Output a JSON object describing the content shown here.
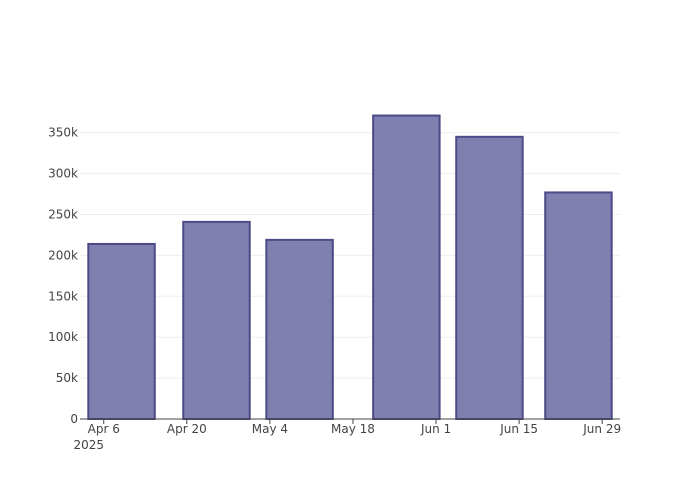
{
  "chart_data": {
    "type": "bar",
    "x": [
      "2025-04-09",
      "2025-04-25",
      "2025-05-09",
      "2025-05-27",
      "2025-06-10",
      "2025-06-25"
    ],
    "values": [
      214000,
      241000,
      219000,
      371000,
      345000,
      277000
    ],
    "color": "#7f7fb0",
    "edge_color": "#4b4b88",
    "xlim": [
      "2025-04-02",
      "2025-07-02"
    ],
    "xticks": [
      {
        "value": "2025-04-06",
        "label": "Apr 6\n2025"
      },
      {
        "value": "2025-04-20",
        "label": "Apr 20"
      },
      {
        "value": "2025-05-04",
        "label": "May 4"
      },
      {
        "value": "2025-05-18",
        "label": "May 18"
      },
      {
        "value": "2025-06-01",
        "label": "Jun 1"
      },
      {
        "value": "2025-06-15",
        "label": "Jun 15"
      },
      {
        "value": "2025-06-29",
        "label": "Jun 29"
      }
    ],
    "ylim": [
      0,
      390000
    ],
    "yticks": [
      0,
      {
        "value": 50000,
        "label": "50k"
      },
      {
        "value": 100000,
        "label": "100k"
      },
      {
        "value": 150000,
        "label": "150k"
      },
      {
        "value": 200000,
        "label": "200k"
      },
      {
        "value": 250000,
        "label": "250k"
      },
      {
        "value": 300000,
        "label": "300k"
      },
      {
        "value": 350000,
        "label": "350k"
      }
    ],
    "grid": true
  }
}
